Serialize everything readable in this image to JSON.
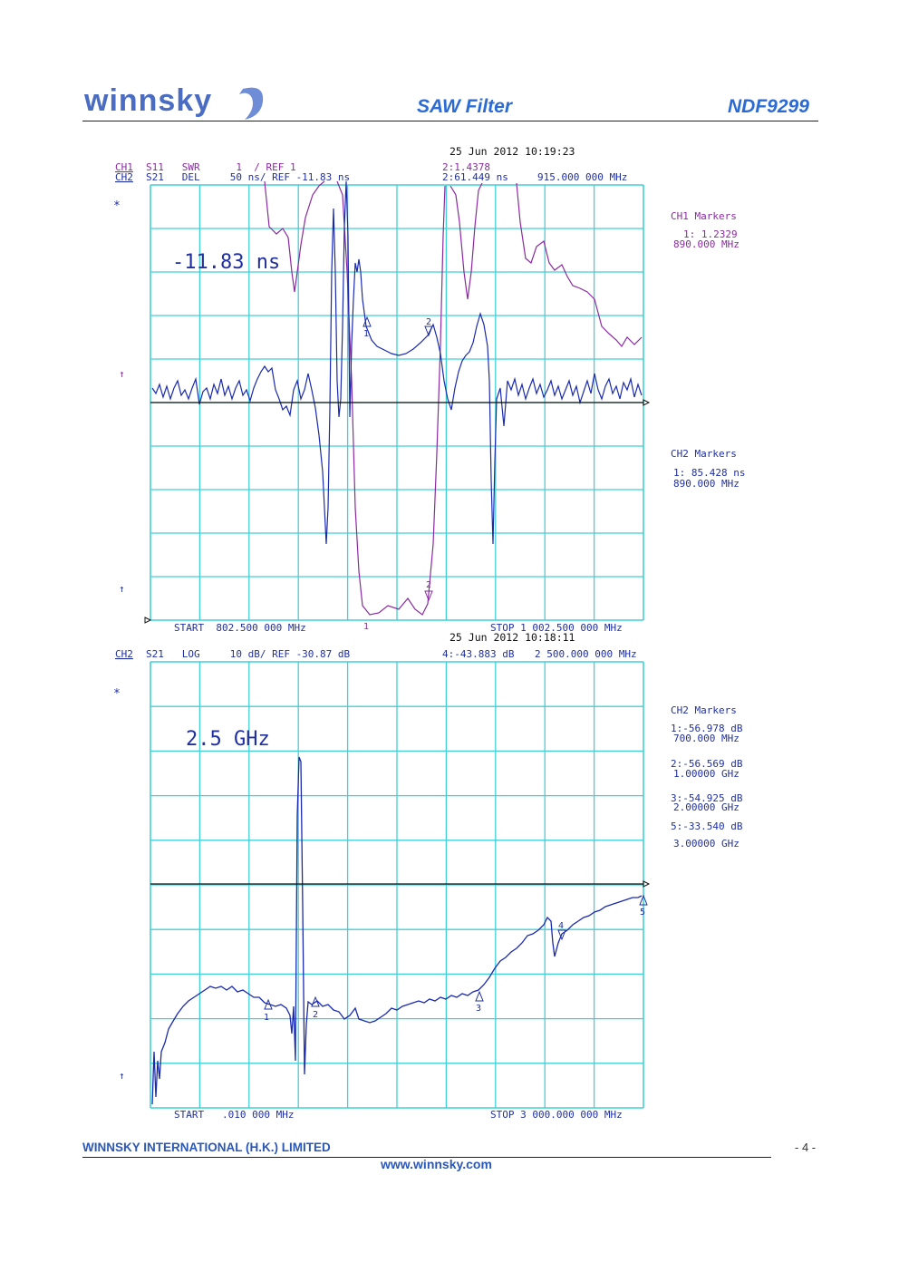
{
  "header": {
    "logo_text": "winnsky",
    "title": "SAW Filter",
    "part_number": "NDF9299"
  },
  "footer": {
    "company": "WINNSKY INTERNATIONAL (H.K.) LIMITED",
    "page": "- 4 -",
    "url": "www.winnsky.com"
  },
  "colors": {
    "grid": "#3fd0d8",
    "trace_ch1": "#8a2aa0",
    "trace_ch2": "#1a2ab0",
    "text_ch1": "#8a2aa0",
    "text_ch2": "#2030a0"
  },
  "plot1": {
    "timestamp": "25 Jun 2012   10:19:23",
    "ch1_line": "S11   SWR      1  / REF 1",
    "ch2_line": "S21   DEL     50 ns/ REF -11.83 ns",
    "ch1_tag": "CH1",
    "ch2_tag": "CH2",
    "marker_ch1_val": "2:1.4378",
    "marker_ch2_val": "2:61.449 ns",
    "marker_freq": "915.000 000 MHz",
    "overlay_label": "-11.83 ns",
    "start": "START  802.500 000 MHz",
    "stop": "STOP 1 002.500 000 MHz",
    "ch1_markers_title": "CH1 Markers",
    "ch1_markers": [
      "1: 1.2329",
      "890.000 MHz"
    ],
    "ch2_markers_title": "CH2 Markers",
    "ch2_markers": [
      "1: 85.428 ns",
      "890.000 MHz"
    ],
    "side_symbols": [
      "*",
      "↑",
      "↑"
    ],
    "marker_labels": [
      "1",
      "2",
      "2",
      "1"
    ]
  },
  "plot2": {
    "timestamp": "25 Jun 2012   10:18:11",
    "ch2_tag": "CH2",
    "ch2_line": "S21   LOG     10 dB/ REF -30.87 dB",
    "marker_val": "4:-43.883 dB",
    "marker_freq": "2 500.000 000 MHz",
    "overlay_label": "2.5 GHz",
    "start": "START   .010 000 MHz",
    "stop": "STOP 3 000.000 000 MHz",
    "ch2_markers_title": "CH2 Markers",
    "ch2_markers": [
      "1:-56.978 dB",
      "700.000 MHz",
      "2:-56.569 dB",
      "1.00000 GHz",
      "3:-54.925 dB",
      "2.00000 GHz",
      "5:-33.540 dB",
      "3.00000 GHz"
    ],
    "side_symbols": [
      "*",
      "↑"
    ],
    "marker_labels": [
      "1",
      "2",
      "3",
      "4",
      "5"
    ]
  }
}
